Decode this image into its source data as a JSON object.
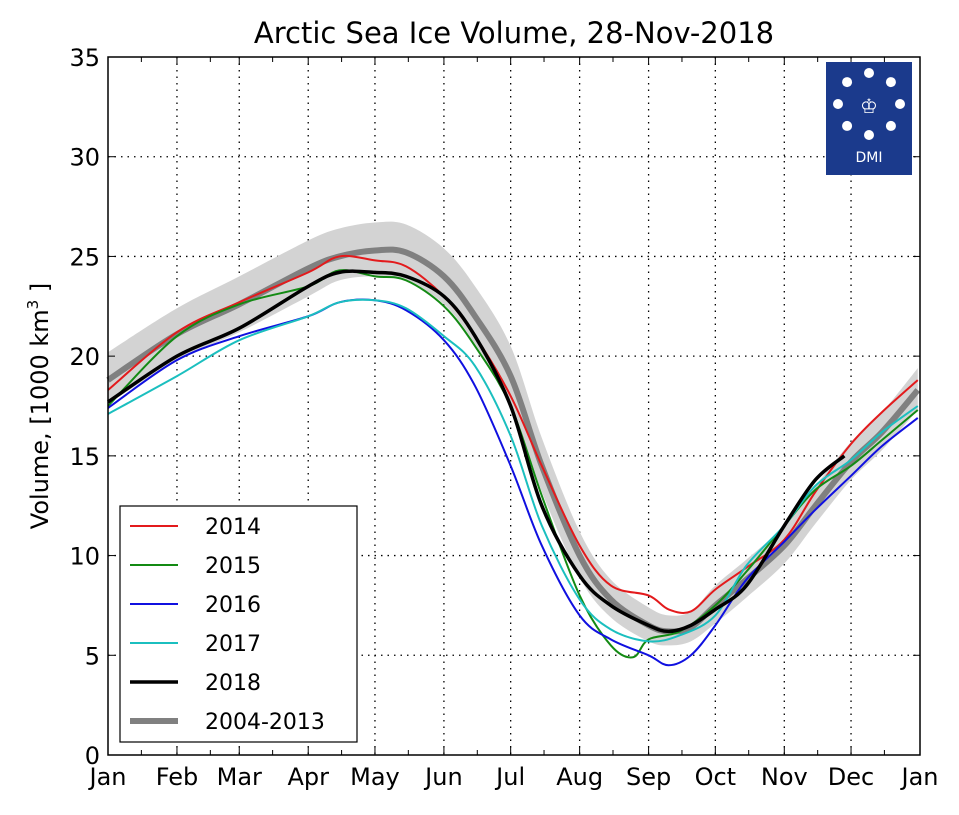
{
  "chart_data": {
    "type": "line",
    "title": "Arctic Sea Ice Volume, 28-Nov-2018",
    "ylabel": "Volume, [1000 km",
    "ylabel_sup": "3",
    "ylabel_end": " ]",
    "ylim": [
      0,
      35
    ],
    "yticks": [
      0,
      5,
      10,
      15,
      20,
      25,
      30,
      35
    ],
    "xticks": [
      "Jan",
      "Feb",
      "Mar",
      "Apr",
      "May",
      "Jun",
      "Jul",
      "Aug",
      "Sep",
      "Oct",
      "Nov",
      "Dec",
      "Jan"
    ],
    "grid": true,
    "legend_placement": "lower-left",
    "logo": {
      "text": "DMI",
      "color": "#1b3a8c"
    },
    "band": {
      "name": "2004-2013 range",
      "color": "#d3d3d3",
      "x": [
        "01-01",
        "02-01",
        "03-01",
        "04-01",
        "04-15",
        "05-01",
        "05-15",
        "06-01",
        "06-15",
        "07-01",
        "07-15",
        "08-01",
        "08-15",
        "09-01",
        "09-10",
        "09-20",
        "10-01",
        "10-15",
        "11-01",
        "11-15",
        "12-01",
        "12-15",
        "12-31"
      ],
      "lower": [
        17.6,
        19.8,
        21.2,
        23.0,
        23.8,
        24.0,
        23.8,
        22.6,
        20.6,
        17.6,
        13.2,
        8.9,
        6.9,
        5.7,
        5.5,
        5.7,
        6.6,
        7.9,
        9.6,
        11.6,
        13.8,
        15.3,
        17.3
      ],
      "upper": [
        20.2,
        22.4,
        24.0,
        25.8,
        26.4,
        26.7,
        26.6,
        25.4,
        23.5,
        20.5,
        15.9,
        11.2,
        8.8,
        7.4,
        7.0,
        7.2,
        8.5,
        9.8,
        11.5,
        13.5,
        15.7,
        17.2,
        19.4
      ]
    },
    "series": [
      {
        "name": "2014",
        "color": "#e31a1c",
        "width": 2,
        "x": [
          "01-01",
          "02-01",
          "03-01",
          "04-01",
          "04-15",
          "05-01",
          "05-15",
          "06-01",
          "06-15",
          "07-01",
          "07-15",
          "08-01",
          "08-15",
          "09-01",
          "09-10",
          "09-20",
          "10-01",
          "10-15",
          "11-01",
          "11-15",
          "12-01",
          "12-15",
          "12-31"
        ],
        "y": [
          18.3,
          21.2,
          22.7,
          24.2,
          25.0,
          24.8,
          24.5,
          23.0,
          21.0,
          18.0,
          14.5,
          10.5,
          8.5,
          8.0,
          7.3,
          7.2,
          8.3,
          9.4,
          10.8,
          13.2,
          15.6,
          17.2,
          18.8
        ]
      },
      {
        "name": "2015",
        "color": "#138a13",
        "width": 2,
        "x": [
          "01-01",
          "02-01",
          "03-01",
          "04-01",
          "04-15",
          "05-01",
          "05-15",
          "06-01",
          "06-15",
          "07-01",
          "07-15",
          "08-01",
          "08-15",
          "08-25",
          "09-01",
          "09-15",
          "10-01",
          "10-15",
          "11-01",
          "11-15",
          "12-01",
          "12-15",
          "12-31"
        ],
        "y": [
          17.5,
          21.0,
          22.6,
          23.5,
          24.3,
          24.0,
          23.8,
          22.5,
          20.5,
          17.5,
          13.0,
          8.0,
          5.5,
          4.9,
          5.8,
          6.2,
          7.5,
          9.2,
          11.5,
          13.3,
          14.5,
          15.8,
          17.3
        ]
      },
      {
        "name": "2016",
        "color": "#1010e0",
        "width": 2,
        "x": [
          "01-01",
          "02-01",
          "03-01",
          "04-01",
          "04-15",
          "05-01",
          "05-15",
          "06-01",
          "06-15",
          "07-01",
          "07-15",
          "08-01",
          "08-15",
          "09-01",
          "09-10",
          "09-20",
          "10-01",
          "10-15",
          "11-01",
          "11-15",
          "12-01",
          "12-15",
          "12-31"
        ],
        "y": [
          17.4,
          19.8,
          21.0,
          22.0,
          22.7,
          22.8,
          22.3,
          20.8,
          18.5,
          14.5,
          10.5,
          7.0,
          5.8,
          5.0,
          4.5,
          5.0,
          6.5,
          8.8,
          10.7,
          12.3,
          14.0,
          15.5,
          16.9
        ]
      },
      {
        "name": "2017",
        "color": "#1bbfbf",
        "width": 2,
        "x": [
          "01-01",
          "02-01",
          "03-01",
          "04-01",
          "04-15",
          "05-01",
          "05-15",
          "06-01",
          "06-15",
          "07-01",
          "07-15",
          "08-01",
          "08-15",
          "09-01",
          "09-15",
          "10-01",
          "10-15",
          "11-01",
          "11-15",
          "12-01",
          "12-15",
          "12-31"
        ],
        "y": [
          17.1,
          19.0,
          20.8,
          22.0,
          22.7,
          22.8,
          22.4,
          21.0,
          19.5,
          16.0,
          11.5,
          7.8,
          6.3,
          5.7,
          6.0,
          7.0,
          9.5,
          11.5,
          13.5,
          14.8,
          16.2,
          17.5
        ]
      },
      {
        "name": "2018",
        "color": "#000000",
        "width": 3.5,
        "x": [
          "01-01",
          "02-01",
          "03-01",
          "04-01",
          "04-15",
          "05-01",
          "05-15",
          "06-01",
          "06-15",
          "07-01",
          "07-15",
          "08-01",
          "08-15",
          "09-01",
          "09-10",
          "09-20",
          "10-01",
          "10-15",
          "11-01",
          "11-15",
          "11-28"
        ],
        "y": [
          17.7,
          20.0,
          21.4,
          23.5,
          24.2,
          24.2,
          24.0,
          23.0,
          21.0,
          17.5,
          12.5,
          9.0,
          7.5,
          6.5,
          6.2,
          6.5,
          7.3,
          8.5,
          11.5,
          13.8,
          15.0
        ]
      },
      {
        "name": "2004-2013",
        "color": "#808080",
        "width": 6,
        "x": [
          "01-01",
          "02-01",
          "03-01",
          "04-01",
          "04-15",
          "05-01",
          "05-15",
          "06-01",
          "06-15",
          "07-01",
          "07-15",
          "08-01",
          "08-15",
          "09-01",
          "09-10",
          "09-20",
          "10-01",
          "10-15",
          "11-01",
          "11-15",
          "12-01",
          "12-15",
          "12-31"
        ],
        "y": [
          18.8,
          21.1,
          22.6,
          24.4,
          25.0,
          25.3,
          25.2,
          24.0,
          22.0,
          19.0,
          14.5,
          10.0,
          7.8,
          6.5,
          6.2,
          6.4,
          7.5,
          8.8,
          10.5,
          12.5,
          14.7,
          16.2,
          18.3
        ]
      }
    ]
  }
}
